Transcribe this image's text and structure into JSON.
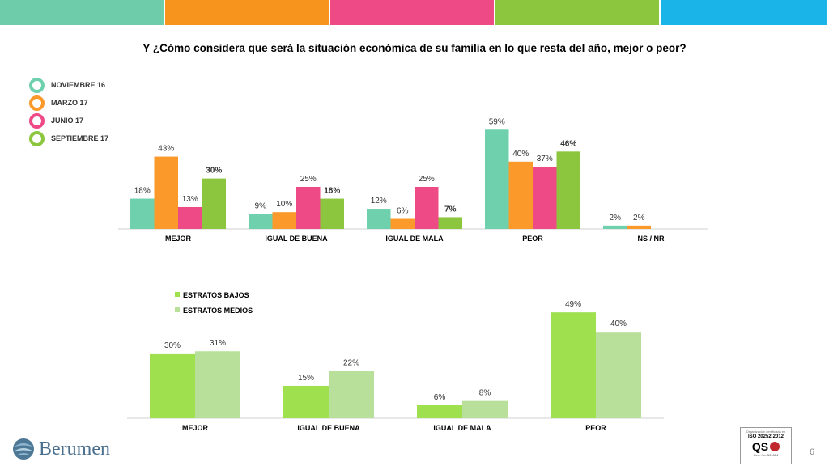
{
  "top_bar_colors": [
    "#6fccaa",
    "#f7941d",
    "#ee4a86",
    "#8cc63f",
    "#1ab4e8"
  ],
  "title": "Y ¿Cómo considera que será la situación económica de su familia en lo que resta del año, mejor o peor?",
  "chart_data": [
    {
      "type": "bar",
      "categories": [
        "MEJOR",
        "IGUAL DE BUENA",
        "IGUAL DE MALA",
        "PEOR",
        "NS / NR"
      ],
      "legend_position": "left",
      "ylim": [
        0,
        70
      ],
      "series": [
        {
          "name": "NOVIEMBRE 16",
          "color": "#6fd0ae",
          "values": [
            18,
            9,
            12,
            59,
            2
          ],
          "labels": [
            "18%",
            "9%",
            "12%",
            "59%",
            "2%"
          ],
          "bold": false
        },
        {
          "name": "MARZO 17",
          "color": "#fb9a2a",
          "values": [
            43,
            10,
            6,
            40,
            2
          ],
          "labels": [
            "43%",
            "10%",
            "6%",
            "40%",
            "2%"
          ],
          "bold": false
        },
        {
          "name": "JUNIO 17",
          "color": "#ee4a86",
          "values": [
            13,
            25,
            25,
            37,
            null
          ],
          "labels": [
            "13%",
            "25%",
            "25%",
            "37%",
            ""
          ],
          "bold": false
        },
        {
          "name": "SEPTIEMBRE 17",
          "color": "#8cc63f",
          "values": [
            30,
            18,
            7,
            46,
            null
          ],
          "labels": [
            "30%",
            "18%",
            "7%",
            "46%",
            ""
          ],
          "bold": true
        }
      ]
    },
    {
      "type": "bar",
      "categories": [
        "MEJOR",
        "IGUAL DE BUENA",
        "IGUAL DE MALA",
        "PEOR"
      ],
      "legend_position": "top-left",
      "ylim": [
        0,
        60
      ],
      "series": [
        {
          "name": "ESTRATOS BAJOS",
          "color": "#9ee04e",
          "values": [
            30,
            15,
            6,
            49
          ],
          "labels": [
            "30%",
            "15%",
            "6%",
            "49%"
          ]
        },
        {
          "name": "ESTRATOS MEDIOS",
          "color": "#b8e09a",
          "values": [
            31,
            22,
            8,
            40
          ],
          "labels": [
            "31%",
            "22%",
            "8%",
            "40%"
          ]
        }
      ]
    }
  ],
  "logo": {
    "text": "Berumen"
  },
  "iso_badge": {
    "caption": "Organización certificada en",
    "standard": "ISO 20252:2012",
    "mark": "QS",
    "cert": "Cert. No. 501814"
  },
  "page_number": "6"
}
